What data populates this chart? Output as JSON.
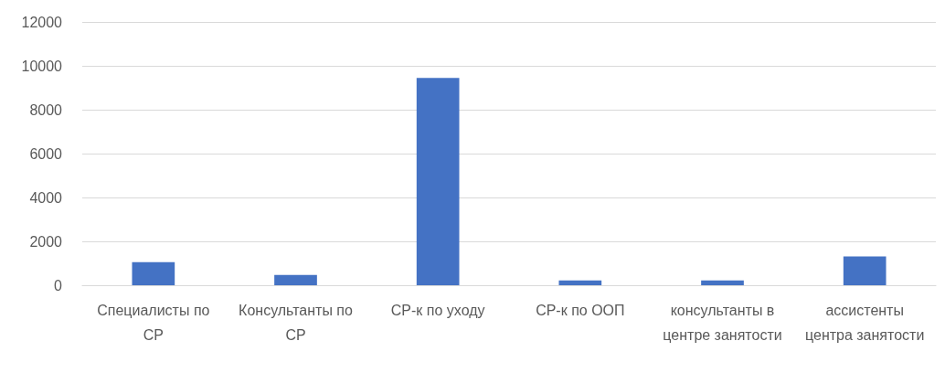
{
  "chart_data": {
    "type": "bar",
    "categories": [
      "Специалисты по СР",
      "Консультанты по СР",
      "СР-к по уходу",
      "СР-к по ООП",
      "консультанты в центре занятости",
      "ассистенты центра занятости"
    ],
    "values": [
      1050,
      470,
      9450,
      220,
      220,
      1310
    ],
    "color": "#4472c4",
    "ylim": [
      0,
      12000
    ],
    "yticks": [
      0,
      2000,
      4000,
      6000,
      8000,
      10000,
      12000
    ],
    "grid": "y"
  }
}
